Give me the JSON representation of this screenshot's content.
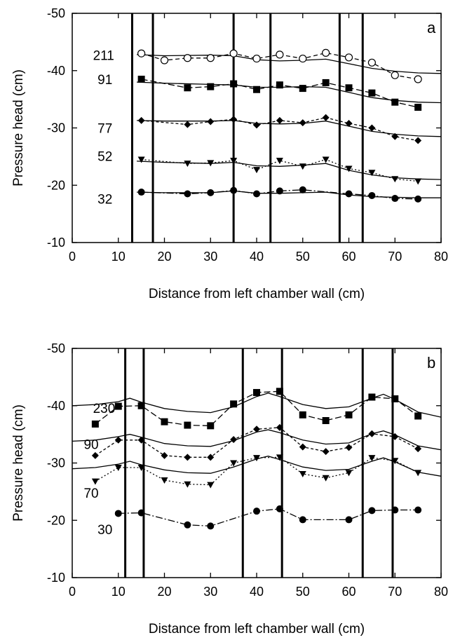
{
  "chart_data": [
    {
      "type": "line",
      "panel_label": "a",
      "xlabel": "Distance from left chamber wall (cm)",
      "ylabel": "Pressure head (cm)",
      "xlim": [
        0,
        80
      ],
      "ylim": [
        -10,
        -50
      ],
      "x_ticks": [
        "0",
        "10",
        "20",
        "30",
        "40",
        "50",
        "60",
        "70",
        "80"
      ],
      "y_ticks": [
        "-10",
        "-20",
        "-30",
        "-40",
        "-50"
      ],
      "x_tick_values": [
        0,
        10,
        20,
        30,
        40,
        50,
        60,
        70,
        80
      ],
      "y_tick_values": [
        -10,
        -20,
        -30,
        -40,
        -50
      ],
      "vertical_lines_x": [
        13,
        17.5,
        35,
        43,
        58,
        63
      ],
      "series": [
        {
          "name": "211",
          "marker": "circle-open",
          "dash": "6,4",
          "x": [
            15,
            20,
            25,
            30,
            35,
            40,
            45,
            50,
            55,
            60,
            65,
            70,
            75
          ],
          "y": [
            -43,
            -41.8,
            -42.2,
            -42.2,
            -43,
            -42.1,
            -42.8,
            -42.1,
            -43.1,
            -42.3,
            -41.4,
            -39.2,
            -38.5
          ]
        },
        {
          "name": "91",
          "marker": "square",
          "dash": "9,4",
          "x": [
            15,
            25,
            30,
            35,
            40,
            45,
            50,
            55,
            60,
            65,
            70,
            75
          ],
          "y": [
            -38.5,
            -37,
            -37.2,
            -37.7,
            -36.7,
            -37.5,
            -36.9,
            -37.9,
            -37,
            -36.1,
            -34.5,
            -33.6
          ]
        },
        {
          "name": "77",
          "marker": "diamond",
          "dash": "4,3",
          "x": [
            15,
            25,
            30,
            35,
            40,
            45,
            50,
            55,
            60,
            65,
            70,
            75
          ],
          "y": [
            -31.3,
            -30.6,
            -31.1,
            -31.5,
            -30.5,
            -31.3,
            -30.9,
            -31.8,
            -30.8,
            -30,
            -28.5,
            -27.8
          ]
        },
        {
          "name": "52",
          "marker": "triangle-down",
          "dash": "2,3",
          "x": [
            15,
            25,
            30,
            35,
            40,
            45,
            50,
            55,
            60,
            65,
            70,
            75
          ],
          "y": [
            -24.5,
            -23.8,
            -23.9,
            -24.3,
            -22.7,
            -24.3,
            -23.3,
            -24.5,
            -22.9,
            -22.2,
            -21.1,
            -20.7
          ]
        },
        {
          "name": "32",
          "marker": "circle",
          "dash": "10,3,2,3",
          "x": [
            15,
            25,
            30,
            35,
            40,
            45,
            50,
            60,
            65,
            70,
            75
          ],
          "y": [
            -18.8,
            -18.5,
            -18.7,
            -19.1,
            -18.5,
            -19,
            -19.2,
            -18.5,
            -18.2,
            -17.7,
            -17.6
          ]
        }
      ],
      "model_curves": [
        {
          "x": [
            14,
            20,
            30,
            35,
            40,
            45,
            50,
            55,
            60,
            65,
            70,
            75,
            80
          ],
          "y": [
            -42.8,
            -42.6,
            -42.7,
            -42.6,
            -41.9,
            -41.7,
            -41.8,
            -42,
            -41.2,
            -40.4,
            -39.9,
            -39.6,
            -39.5
          ]
        },
        {
          "x": [
            14,
            20,
            30,
            35,
            40,
            45,
            50,
            55,
            60,
            65,
            70,
            75,
            80
          ],
          "y": [
            -38,
            -37.8,
            -37.6,
            -37.5,
            -37.1,
            -37.1,
            -37.2,
            -37.1,
            -36.2,
            -35.3,
            -34.8,
            -34.5,
            -34.4
          ]
        },
        {
          "x": [
            14,
            20,
            30,
            35,
            40,
            45,
            50,
            55,
            60,
            65,
            70,
            75,
            80
          ],
          "y": [
            -31.3,
            -31.2,
            -31.2,
            -31.3,
            -30.8,
            -30.7,
            -30.8,
            -31.2,
            -30.3,
            -29.4,
            -28.9,
            -28.6,
            -28.5
          ]
        },
        {
          "x": [
            14,
            20,
            30,
            35,
            40,
            45,
            50,
            55,
            60,
            65,
            70,
            75,
            80
          ],
          "y": [
            -24.2,
            -24,
            -23.8,
            -24,
            -23.4,
            -23.3,
            -23.5,
            -23.8,
            -22.6,
            -21.8,
            -21.3,
            -21.1,
            -21
          ]
        },
        {
          "x": [
            14,
            20,
            30,
            35,
            40,
            45,
            50,
            55,
            60,
            65,
            70,
            75,
            80
          ],
          "y": [
            -18.8,
            -18.7,
            -18.7,
            -19,
            -18.6,
            -18.6,
            -18.7,
            -18.8,
            -18.3,
            -18,
            -17.9,
            -17.8,
            -17.8
          ]
        }
      ],
      "labels": [
        {
          "text": "211",
          "x": 4.5,
          "y": -42.6
        },
        {
          "text": "91",
          "x": 5.5,
          "y": -38.4
        },
        {
          "text": "77",
          "x": 5.5,
          "y": -29.9
        },
        {
          "text": "52",
          "x": 5.5,
          "y": -25
        },
        {
          "text": "32",
          "x": 5.5,
          "y": -17.5
        }
      ]
    },
    {
      "type": "line",
      "panel_label": "b",
      "xlabel": "Distance from left chamber wall (cm)",
      "ylabel": "Pressure head (cm)",
      "xlim": [
        0,
        80
      ],
      "ylim": [
        -10,
        -50
      ],
      "x_ticks": [
        "0",
        "10",
        "20",
        "30",
        "40",
        "50",
        "60",
        "70",
        "80"
      ],
      "y_ticks": [
        "-10",
        "-20",
        "-30",
        "-40",
        "-50"
      ],
      "x_tick_values": [
        0,
        10,
        20,
        30,
        40,
        50,
        60,
        70,
        80
      ],
      "y_tick_values": [
        -10,
        -20,
        -30,
        -40,
        -50
      ],
      "vertical_lines_x": [
        11.5,
        15.5,
        37,
        45.5,
        63,
        69.5
      ],
      "series": [
        {
          "name": "230",
          "marker": "square",
          "dash": "9,4",
          "x": [
            5,
            10,
            15,
            20,
            25,
            30,
            35,
            40,
            45,
            50,
            55,
            60,
            65,
            70,
            75
          ],
          "y": [
            -36.8,
            -39.9,
            -40,
            -37.2,
            -36.6,
            -36.5,
            -40.3,
            -42.3,
            -42.5,
            -38.4,
            -37.4,
            -38.4,
            -41.5,
            -41.2,
            -38.2
          ]
        },
        {
          "name": "90",
          "marker": "diamond",
          "dash": "4,3",
          "x": [
            5,
            10,
            15,
            20,
            25,
            30,
            35,
            40,
            45,
            50,
            55,
            60,
            65,
            70,
            75
          ],
          "y": [
            -31.3,
            -34,
            -34,
            -31.3,
            -31,
            -31,
            -34.1,
            -35.9,
            -36.2,
            -32.8,
            -32,
            -32.7,
            -35.1,
            -34.6,
            -32.5
          ]
        },
        {
          "name": "70",
          "marker": "triangle-down",
          "dash": "2,3",
          "x": [
            5,
            10,
            15,
            20,
            25,
            30,
            35,
            40,
            45,
            50,
            55,
            60,
            65,
            70,
            75
          ],
          "y": [
            -26.8,
            -29.2,
            -29.2,
            -27,
            -26.3,
            -26.2,
            -30,
            -30.9,
            -31,
            -28.1,
            -27.4,
            -28.3,
            -30.9,
            -30.4,
            -28.3
          ]
        },
        {
          "name": "30",
          "marker": "circle",
          "dash": "10,3,2,3",
          "x": [
            10,
            15,
            25,
            30,
            40,
            45,
            50,
            60,
            65,
            70,
            75
          ],
          "y": [
            -21.2,
            -21.3,
            -19.2,
            -19,
            -21.6,
            -22,
            -20.1,
            -20.1,
            -21.7,
            -21.8,
            -21.8
          ]
        }
      ],
      "model_curves": [
        {
          "x": [
            0,
            5,
            10,
            12.5,
            15,
            20,
            25,
            30,
            35,
            40,
            42.5,
            45,
            50,
            55,
            60,
            65,
            67.5,
            70,
            75,
            80
          ],
          "y": [
            -40,
            -40.2,
            -40.7,
            -41.3,
            -40.6,
            -39.5,
            -39,
            -38.8,
            -39.8,
            -41.6,
            -42.2,
            -41.6,
            -40.2,
            -39.5,
            -39.8,
            -41.3,
            -42,
            -41.1,
            -38.9,
            -38
          ]
        },
        {
          "x": [
            0,
            5,
            10,
            12.5,
            15,
            20,
            25,
            30,
            35,
            40,
            42.5,
            45,
            50,
            55,
            60,
            65,
            67.5,
            70,
            75,
            80
          ],
          "y": [
            -33.8,
            -34,
            -34.6,
            -35,
            -34.5,
            -33.4,
            -33,
            -32.9,
            -33.9,
            -35.4,
            -35.8,
            -35.3,
            -34,
            -33.3,
            -33.5,
            -35.1,
            -35.6,
            -34.9,
            -33,
            -32.3
          ]
        },
        {
          "x": [
            0,
            5,
            10,
            12.5,
            15,
            20,
            25,
            30,
            35,
            40,
            42.5,
            45,
            50,
            55,
            60,
            65,
            67.5,
            70,
            75,
            80
          ],
          "y": [
            -29,
            -29.2,
            -29.8,
            -30.3,
            -29.7,
            -28.8,
            -28.3,
            -28.2,
            -29.3,
            -30.7,
            -31.2,
            -30.6,
            -29.3,
            -28.7,
            -28.9,
            -30.3,
            -30.9,
            -30.2,
            -28.4,
            -27.7
          ]
        }
      ],
      "labels": [
        {
          "text": "230",
          "x": 4.5,
          "y": -39.5
        },
        {
          "text": "90",
          "x": 2.5,
          "y": -33.2
        },
        {
          "text": "70",
          "x": 2.5,
          "y": -24.7
        },
        {
          "text": "30",
          "x": 5.5,
          "y": -18.3
        }
      ]
    }
  ]
}
